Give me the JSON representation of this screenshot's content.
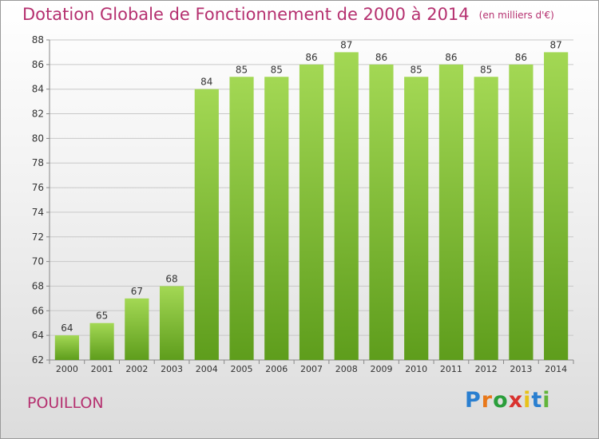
{
  "header": {
    "title": "Dotation Globale de Fonctionnement de 2000 à 2014",
    "unit": "(en milliers d'€)"
  },
  "footer": {
    "place_name": "POUILLON",
    "brand": {
      "letters": [
        "P",
        "r",
        "o",
        "x",
        "i",
        "t",
        "i"
      ],
      "colors": [
        "#2a7fd0",
        "#e8781a",
        "#2a9e3b",
        "#d9322e",
        "#e8c21a",
        "#2a7fd0",
        "#62b53b"
      ]
    }
  },
  "colors": {
    "title": "#b5306f",
    "bar_top": "#a3d854",
    "bar_bottom": "#5e9d1c",
    "grid": "#c8c8c8",
    "axis_text": "#333333"
  },
  "chart_data": {
    "type": "bar",
    "categories": [
      "2000",
      "2001",
      "2002",
      "2003",
      "2004",
      "2005",
      "2006",
      "2007",
      "2008",
      "2009",
      "2010",
      "2011",
      "2012",
      "2013",
      "2014"
    ],
    "values": [
      64,
      65,
      67,
      68,
      84,
      85,
      85,
      86,
      87,
      86,
      85,
      86,
      85,
      86,
      87
    ],
    "title": "Dotation Globale de Fonctionnement de 2000 à 2014",
    "xlabel": "",
    "ylabel": "",
    "ylim": [
      62,
      88
    ],
    "yticks": [
      62,
      64,
      66,
      68,
      70,
      72,
      74,
      76,
      78,
      80,
      82,
      84,
      86,
      88
    ],
    "grid": true,
    "data_labels": true
  }
}
